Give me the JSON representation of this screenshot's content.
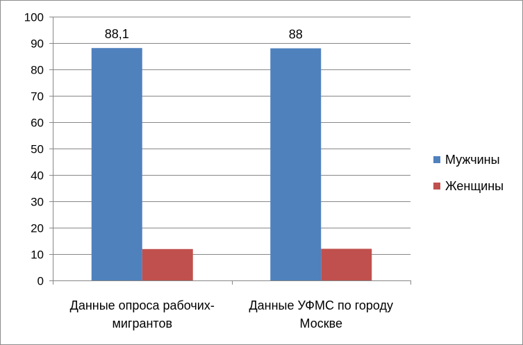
{
  "chart_data": {
    "type": "bar",
    "categories": [
      [
        "Данные опроса рабочих-",
        "мигрантов"
      ],
      [
        "Данные УФМС по городу",
        "Москве"
      ]
    ],
    "series": [
      {
        "name": "Мужчины",
        "values": [
          88.1,
          88
        ],
        "labels": [
          "88,1",
          "88"
        ],
        "color": "#4f81bd"
      },
      {
        "name": "Женщины",
        "values": [
          11.9,
          12
        ],
        "labels": [
          "",
          ""
        ],
        "color": "#c0504d"
      }
    ],
    "ylim": [
      0,
      100
    ],
    "yticks": [
      0,
      10,
      20,
      30,
      40,
      50,
      60,
      70,
      80,
      90,
      100
    ],
    "grid": true,
    "legend": "right",
    "title": "",
    "xlabel": "",
    "ylabel": ""
  }
}
